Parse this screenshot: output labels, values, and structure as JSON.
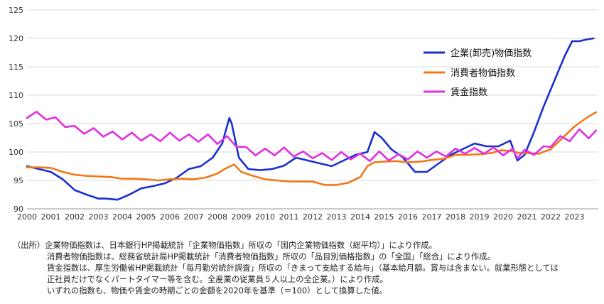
{
  "chart_data": {
    "type": "line",
    "title": "",
    "xlabel": "",
    "ylabel": "",
    "ylim": [
      90,
      125
    ],
    "xlim": [
      2000,
      2024
    ],
    "yticks": [
      90,
      95,
      100,
      105,
      110,
      115,
      120,
      125
    ],
    "xticks": [
      "2000",
      "2001",
      "2002",
      "2003",
      "2004",
      "2005",
      "2006",
      "2007",
      "2008",
      "2009",
      "2010",
      "2011",
      "2012",
      "2013",
      "2014",
      "2015",
      "2016",
      "2017",
      "2018",
      "2019",
      "2020",
      "2021",
      "2022",
      "2023"
    ],
    "grid": "horizontal",
    "legend": "top-right",
    "series": [
      {
        "name": "企業(卸売)物価指数",
        "color": "#1a2fd1",
        "x": [
          2000,
          2000.5,
          2001,
          2001.5,
          2002,
          2002.5,
          2003,
          2003.3,
          2003.8,
          2004.3,
          2004.8,
          2005.3,
          2005.8,
          2006.3,
          2006.8,
          2007.3,
          2007.8,
          2008.2,
          2008.5,
          2008.6,
          2008.9,
          2009.3,
          2009.8,
          2010.3,
          2010.8,
          2011.3,
          2011.8,
          2012.3,
          2012.8,
          2013.3,
          2013.8,
          2014.3,
          2014.6,
          2014.9,
          2015.3,
          2015.8,
          2016.3,
          2016.8,
          2017.3,
          2017.8,
          2018.3,
          2018.8,
          2019.3,
          2019.8,
          2020.3,
          2020.6,
          2020.9,
          2021.3,
          2021.7,
          2022.0,
          2022.3,
          2022.6,
          2022.9,
          2023.2,
          2023.5,
          2023.8
        ],
        "values": [
          97.5,
          97,
          96.5,
          95.2,
          93.3,
          92.5,
          91.8,
          91.8,
          91.6,
          92.5,
          93.6,
          94,
          94.5,
          95.5,
          97,
          97.5,
          99,
          101.5,
          106,
          105,
          99,
          97,
          96.8,
          97,
          97.6,
          99,
          98.5,
          98,
          97.5,
          98.5,
          99.5,
          100,
          103.5,
          102.5,
          100.5,
          99,
          96.5,
          96.5,
          98,
          99.5,
          100.5,
          101.5,
          101,
          101,
          102,
          98.5,
          99.5,
          103.5,
          108,
          111,
          114,
          117,
          119.5,
          119.5,
          119.8,
          120
        ]
      },
      {
        "name": "消費者物価指数",
        "color": "#f07818",
        "x": [
          2000,
          2000.5,
          2001,
          2001.5,
          2002,
          2002.5,
          2003,
          2003.5,
          2004,
          2004.5,
          2005,
          2005.5,
          2006,
          2006.5,
          2007,
          2007.5,
          2008,
          2008.3,
          2008.7,
          2009,
          2009.5,
          2010,
          2010.5,
          2011,
          2011.5,
          2012,
          2012.5,
          2013,
          2013.5,
          2014,
          2014.3,
          2014.6,
          2015,
          2015.5,
          2016,
          2016.5,
          2017,
          2017.5,
          2018,
          2018.5,
          2019,
          2019.5,
          2019.9,
          2020.3,
          2020.7,
          2021,
          2021.5,
          2022,
          2022.5,
          2023,
          2023.5,
          2023.9
        ],
        "values": [
          97.3,
          97.3,
          97.2,
          96.5,
          96,
          95.8,
          95.7,
          95.6,
          95.3,
          95.3,
          95.2,
          95,
          95.2,
          95.3,
          95.2,
          95.5,
          96.2,
          97,
          97.8,
          96.5,
          95.8,
          95.2,
          95,
          94.8,
          94.8,
          94.8,
          94.2,
          94.2,
          94.6,
          95.6,
          97.5,
          98.2,
          98.3,
          98.4,
          98.2,
          98.3,
          98.6,
          98.8,
          99.5,
          99.5,
          99.6,
          99.8,
          100.3,
          100.2,
          99.8,
          99.8,
          99.7,
          100.5,
          102.5,
          104.5,
          106,
          107
        ]
      },
      {
        "name": "賃金指数",
        "color": "#e030e0",
        "x": [
          2000,
          2000.4,
          2000.8,
          2001.2,
          2001.6,
          2002,
          2002.4,
          2002.8,
          2003.2,
          2003.6,
          2004,
          2004.4,
          2004.8,
          2005.2,
          2005.6,
          2006,
          2006.4,
          2006.8,
          2007.2,
          2007.6,
          2008,
          2008.4,
          2008.8,
          2009.2,
          2009.6,
          2010,
          2010.4,
          2010.8,
          2011.2,
          2011.6,
          2012,
          2012.4,
          2012.8,
          2013.2,
          2013.6,
          2014,
          2014.4,
          2014.8,
          2015.2,
          2015.6,
          2016,
          2016.4,
          2016.8,
          2017.2,
          2017.6,
          2018,
          2018.4,
          2018.8,
          2019.2,
          2019.6,
          2020,
          2020.4,
          2020.6,
          2020.9,
          2021.3,
          2021.7,
          2022,
          2022.4,
          2022.8,
          2023.2,
          2023.6,
          2023.9
        ],
        "values": [
          106,
          106.5,
          106.3,
          105.5,
          105,
          104,
          103.8,
          103.6,
          103.3,
          103,
          102.8,
          102.8,
          102.6,
          102.5,
          102.5,
          102.8,
          102.6,
          102.5,
          102.4,
          102.5,
          102,
          102.2,
          101.5,
          100.3,
          100,
          100,
          100,
          100.2,
          99.8,
          99.5,
          99.5,
          99.2,
          99.2,
          99.4,
          99.3,
          99.1,
          99,
          99.5,
          99.1,
          99,
          99.3,
          99.5,
          99.6,
          99.5,
          99.8,
          100,
          100.3,
          100.1,
          100.3,
          100.2,
          100,
          100,
          99.5,
          99.8,
          100.1,
          100.4,
          101.5,
          102.2,
          102.5,
          103.4,
          103,
          103.8
        ]
      }
    ]
  },
  "notes": [
    "（出所）企業物価指数は、日本銀行HP掲載統計「企業物価指数」所収の「国内企業物価指数（総平均）」により作成。",
    "消費者物価指数は、総務省統計局HP掲載統計「消費者物価指数」所収の「品目別価格指数」の「全国」「総合」により作成。",
    "賃金指数は、厚生労働省HP掲載統計「毎月勤労統計調査」所収の「きまって支給する給与」（基本給月額。賞与は含まない。就業形態としては",
    "正社員だけでなくパートタイマー等を含む。全産業の従業員５人以上の全企業。）により作成。",
    "いずれの指数も、物価や賃金の時期ごとの金額を2020年を基準（＝100）として換算した値。"
  ]
}
